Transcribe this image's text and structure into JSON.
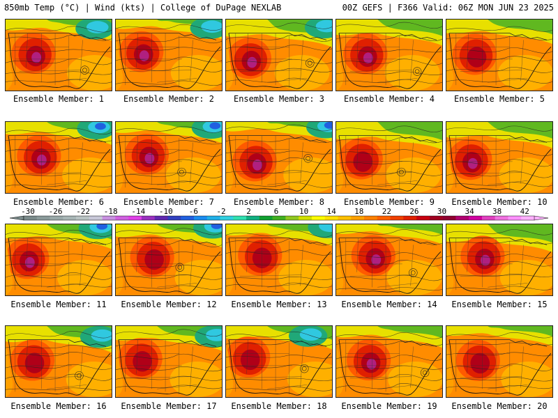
{
  "header": {
    "title": "850mb Temp (°C) | Wind (kts) | College of DuPage NEXLAB",
    "run": "00Z GEFS | F366 Valid: 06Z MON JUN 23 2025"
  },
  "colorbar": {
    "labels": [
      "-30",
      "-26",
      "-22",
      "-18",
      "-14",
      "-10",
      "-6",
      "-2",
      "2",
      "6",
      "10",
      "14",
      "18",
      "22",
      "26",
      "30",
      "34",
      "38",
      "42"
    ],
    "colors": [
      "#7a8a8a",
      "#8a9a9a",
      "#9aa9a9",
      "#a8b6b6",
      "#b9c3c3",
      "#c8c8d8",
      "#c890e0",
      "#d060e0",
      "#e040e8",
      "#9a30c0",
      "#6028b0",
      "#3040c0",
      "#2060e0",
      "#1a8cf0",
      "#20b0e8",
      "#30d0e0",
      "#30e0b0",
      "#10b080",
      "#10a030",
      "#40b020",
      "#90c820",
      "#d0e000",
      "#ffff00",
      "#ffe000",
      "#ffc000",
      "#ffa000",
      "#ff8000",
      "#ff6000",
      "#f04000",
      "#e02000",
      "#c80010",
      "#a00020",
      "#900030",
      "#b00070",
      "#d000a0",
      "#e040c0",
      "#f070e0",
      "#ff90ff",
      "#ffb0ff"
    ]
  },
  "panels": [
    {
      "label": "Ensemble Member: 1"
    },
    {
      "label": "Ensemble Member: 2"
    },
    {
      "label": "Ensemble Member: 3"
    },
    {
      "label": "Ensemble Member: 4"
    },
    {
      "label": "Ensemble Member: 5"
    },
    {
      "label": "Ensemble Member: 6"
    },
    {
      "label": "Ensemble Member: 7"
    },
    {
      "label": "Ensemble Member: 8"
    },
    {
      "label": "Ensemble Member: 9"
    },
    {
      "label": "Ensemble Member: 10"
    },
    {
      "label": "Ensemble Member: 11"
    },
    {
      "label": "Ensemble Member: 12"
    },
    {
      "label": "Ensemble Member: 13"
    },
    {
      "label": "Ensemble Member: 14"
    },
    {
      "label": "Ensemble Member: 15"
    },
    {
      "label": "Ensemble Member: 16"
    },
    {
      "label": "Ensemble Member: 17"
    },
    {
      "label": "Ensemble Member: 18"
    },
    {
      "label": "Ensemble Member: 19"
    },
    {
      "label": "Ensemble Member: 20"
    }
  ]
}
